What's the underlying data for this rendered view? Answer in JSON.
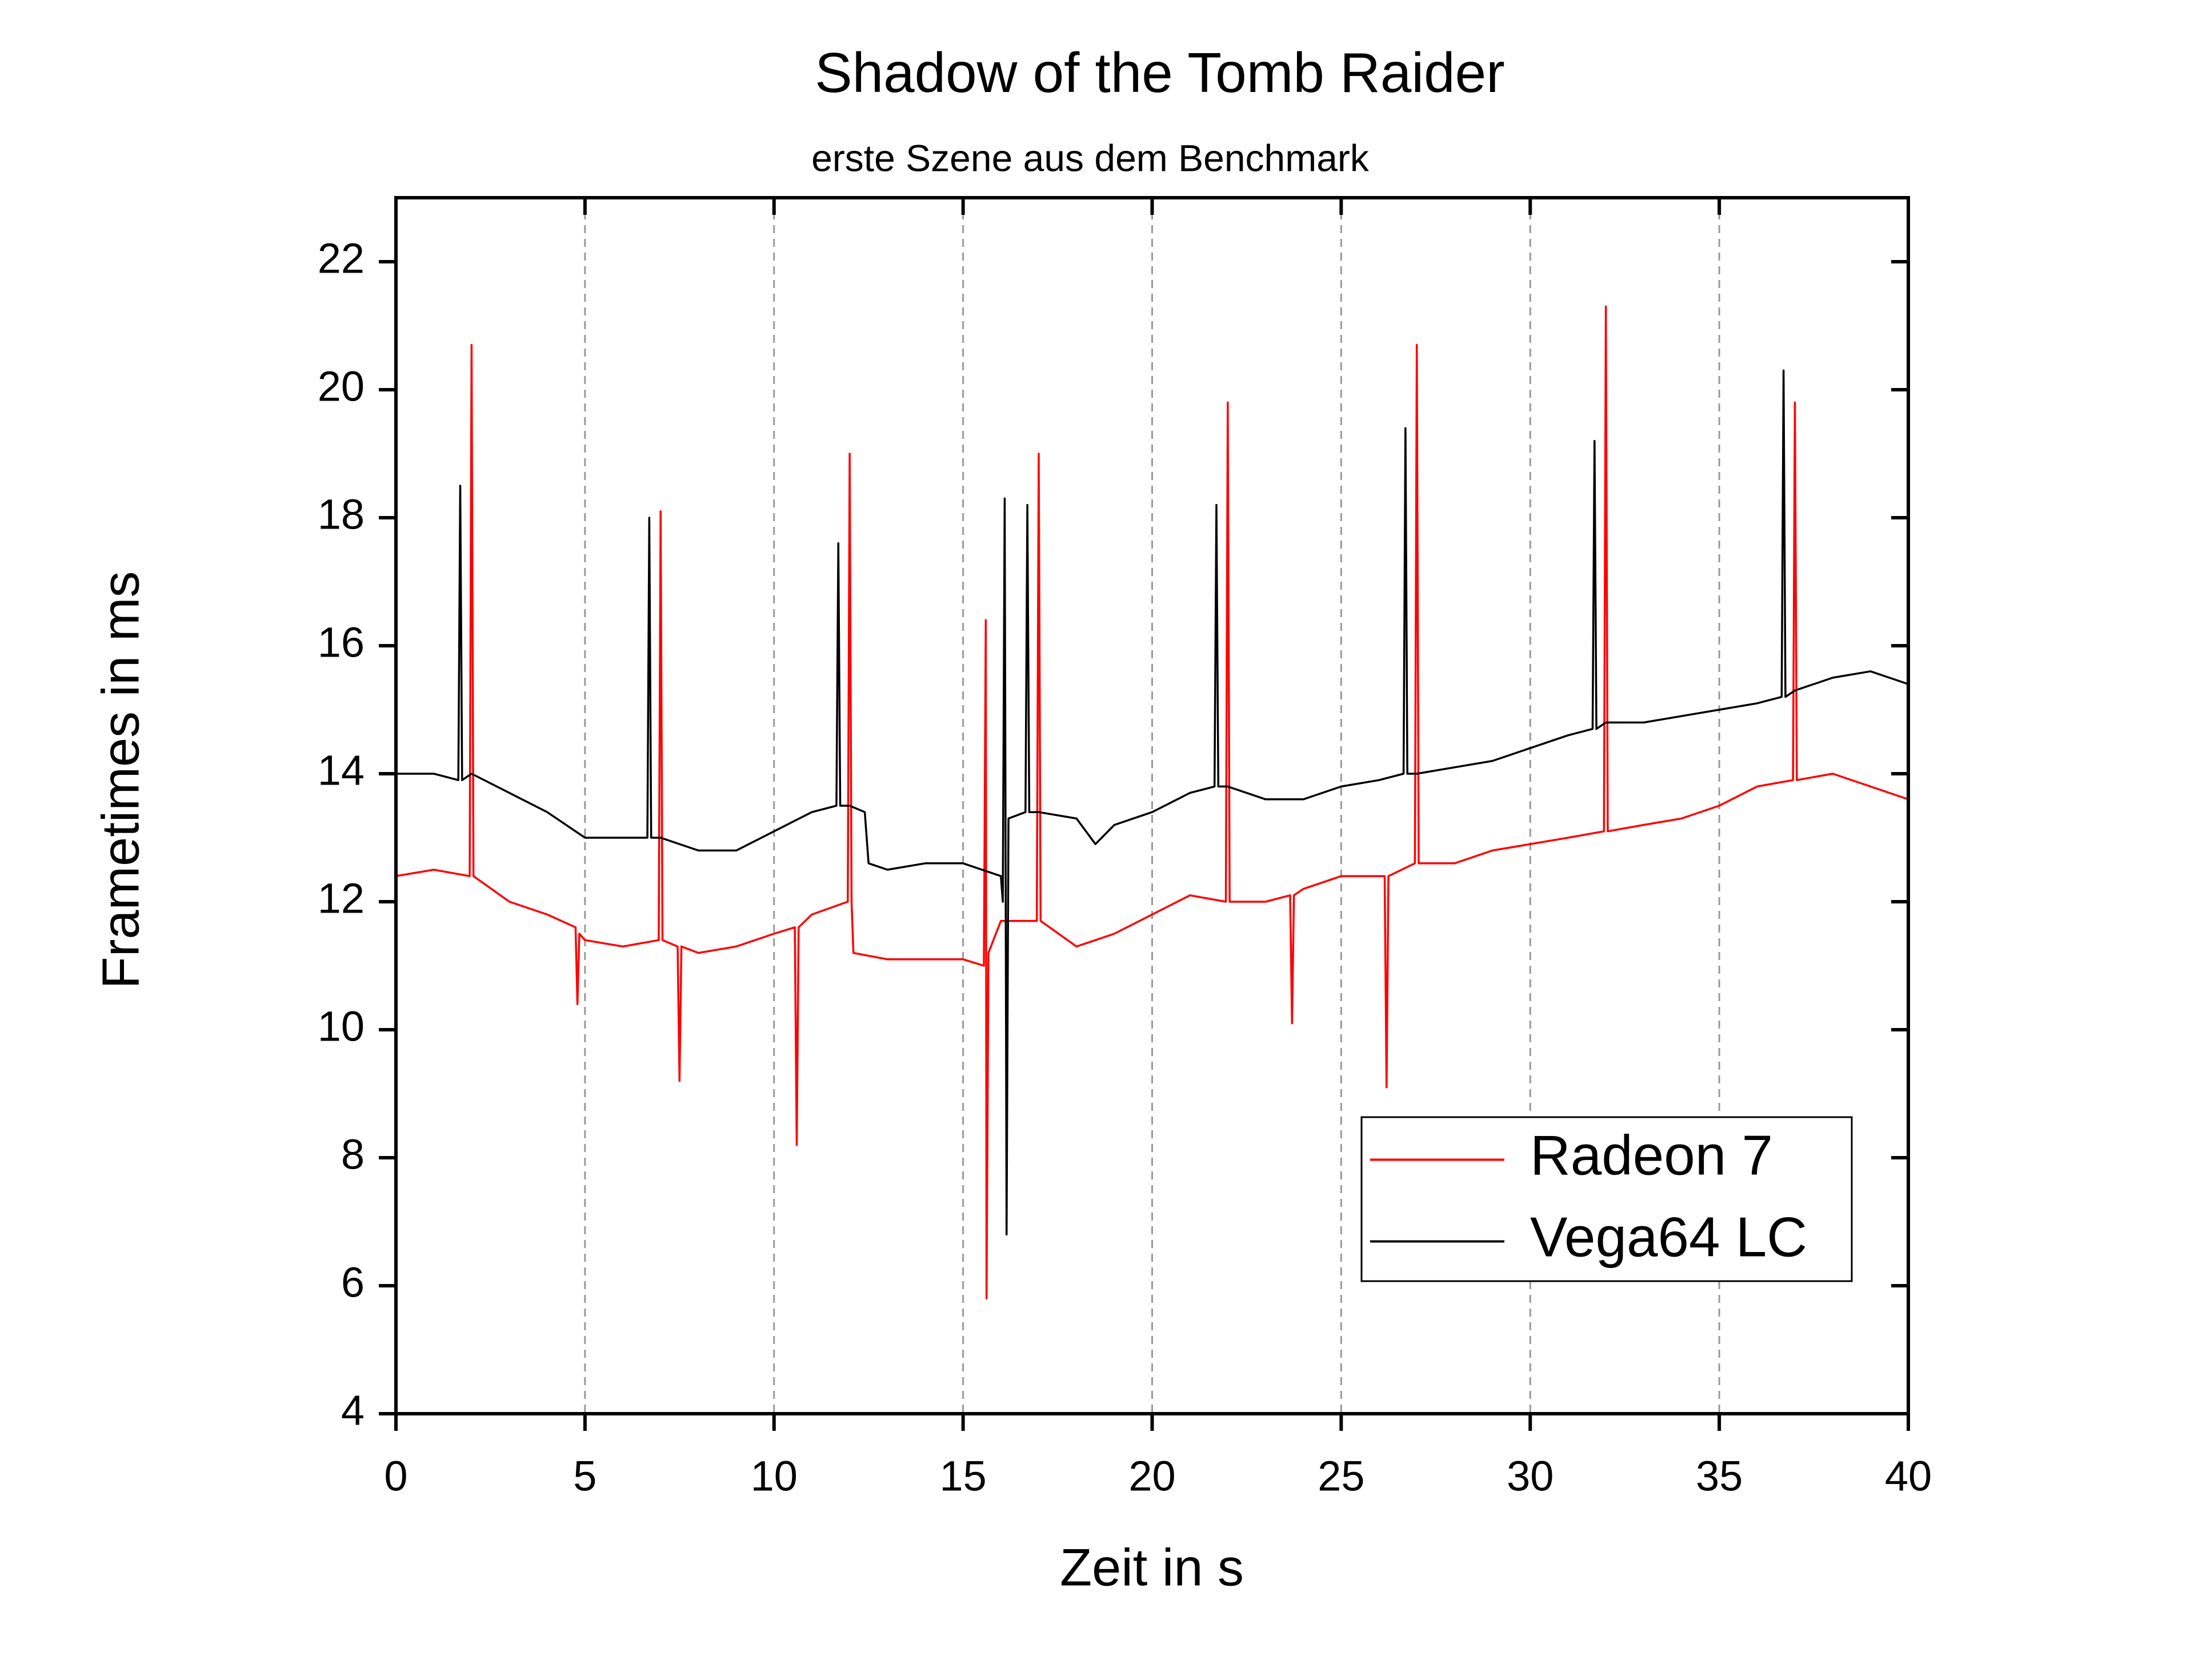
{
  "chart_data": {
    "type": "line",
    "title": "Shadow of the Tomb Raider",
    "subtitle": "erste Szene aus dem Benchmark",
    "xlabel": "Zeit in s",
    "ylabel": "Frametimes in ms",
    "xlim": [
      0,
      40
    ],
    "xticks": [
      0,
      5,
      10,
      15,
      20,
      25,
      30,
      35,
      40
    ],
    "ylim": [
      4,
      23
    ],
    "yticks": [
      4,
      6,
      8,
      10,
      12,
      14,
      16,
      18,
      20,
      22
    ],
    "grid": true,
    "legend": "lower right",
    "series": [
      {
        "name": "Radeon 7",
        "color": "#ff0000",
        "x": [
          0,
          1,
          1.95,
          2,
          2.05,
          3,
          4,
          4.75,
          4.8,
          4.85,
          5,
          6,
          6.95,
          7,
          7.05,
          7.45,
          7.5,
          7.55,
          8,
          9,
          10,
          10.55,
          10.6,
          10.65,
          11,
          11.95,
          12,
          12.05,
          12.1,
          13,
          14,
          15,
          15.55,
          15.6,
          15.62,
          15.67,
          16,
          16.95,
          17,
          17.05,
          18,
          19,
          20,
          21,
          21.95,
          22,
          22.05,
          23,
          23.65,
          23.7,
          23.75,
          24,
          25,
          26.15,
          26.2,
          26.25,
          26.95,
          27,
          27.05,
          28,
          29,
          30,
          31,
          31.95,
          32,
          32.05,
          33,
          34,
          35,
          36,
          36.95,
          37,
          37.05,
          38,
          39,
          40
        ],
        "values": [
          12.4,
          12.5,
          12.4,
          20.7,
          12.4,
          12.0,
          11.8,
          11.6,
          10.4,
          11.5,
          11.4,
          11.3,
          11.4,
          18.1,
          11.4,
          11.3,
          9.2,
          11.3,
          11.2,
          11.3,
          11.5,
          11.6,
          8.2,
          11.6,
          11.8,
          12.0,
          19.0,
          12.0,
          11.2,
          11.1,
          11.1,
          11.1,
          11.0,
          16.4,
          5.8,
          11.2,
          11.7,
          11.7,
          19.0,
          11.7,
          11.3,
          11.5,
          11.8,
          12.1,
          12.0,
          19.8,
          12.0,
          12.0,
          12.1,
          10.1,
          12.1,
          12.2,
          12.4,
          12.4,
          9.1,
          12.4,
          12.6,
          20.7,
          12.6,
          12.6,
          12.8,
          12.9,
          13.0,
          13.1,
          21.3,
          13.1,
          13.2,
          13.3,
          13.5,
          13.8,
          13.9,
          19.8,
          13.9,
          14.0,
          13.8,
          13.6
        ]
      },
      {
        "name": "Vega64 LC",
        "color": "#000000",
        "x": [
          0,
          1,
          1.65,
          1.7,
          1.75,
          2,
          3,
          4,
          5,
          6,
          6.65,
          6.7,
          6.75,
          7,
          8,
          9,
          10,
          11,
          11.65,
          11.7,
          11.75,
          12,
          12.4,
          12.5,
          13,
          14,
          15,
          16,
          16.05,
          16.1,
          16.15,
          16.2,
          16.65,
          16.7,
          16.75,
          17,
          18,
          18.5,
          19,
          20,
          21,
          21.65,
          21.7,
          21.75,
          22,
          23,
          24,
          25,
          26,
          26.65,
          26.7,
          26.75,
          27,
          28,
          29,
          30,
          31,
          31.65,
          31.7,
          31.75,
          32,
          33,
          34,
          35,
          36,
          36.65,
          36.7,
          36.75,
          37,
          38,
          39,
          40
        ],
        "values": [
          14.0,
          14.0,
          13.9,
          18.5,
          13.9,
          14.0,
          13.7,
          13.4,
          13.0,
          13.0,
          13.0,
          18.0,
          13.0,
          13.0,
          12.8,
          12.8,
          13.1,
          13.4,
          13.5,
          17.6,
          13.5,
          13.5,
          13.4,
          12.6,
          12.5,
          12.6,
          12.6,
          12.4,
          12.0,
          18.3,
          6.8,
          13.3,
          13.4,
          18.2,
          13.4,
          13.4,
          13.3,
          12.9,
          13.2,
          13.4,
          13.7,
          13.8,
          18.2,
          13.8,
          13.8,
          13.6,
          13.6,
          13.8,
          13.9,
          14.0,
          19.4,
          14.0,
          14.0,
          14.1,
          14.2,
          14.4,
          14.6,
          14.7,
          19.2,
          14.7,
          14.8,
          14.8,
          14.9,
          15.0,
          15.1,
          15.2,
          20.3,
          15.2,
          15.3,
          15.5,
          15.6,
          15.4
        ]
      }
    ]
  }
}
